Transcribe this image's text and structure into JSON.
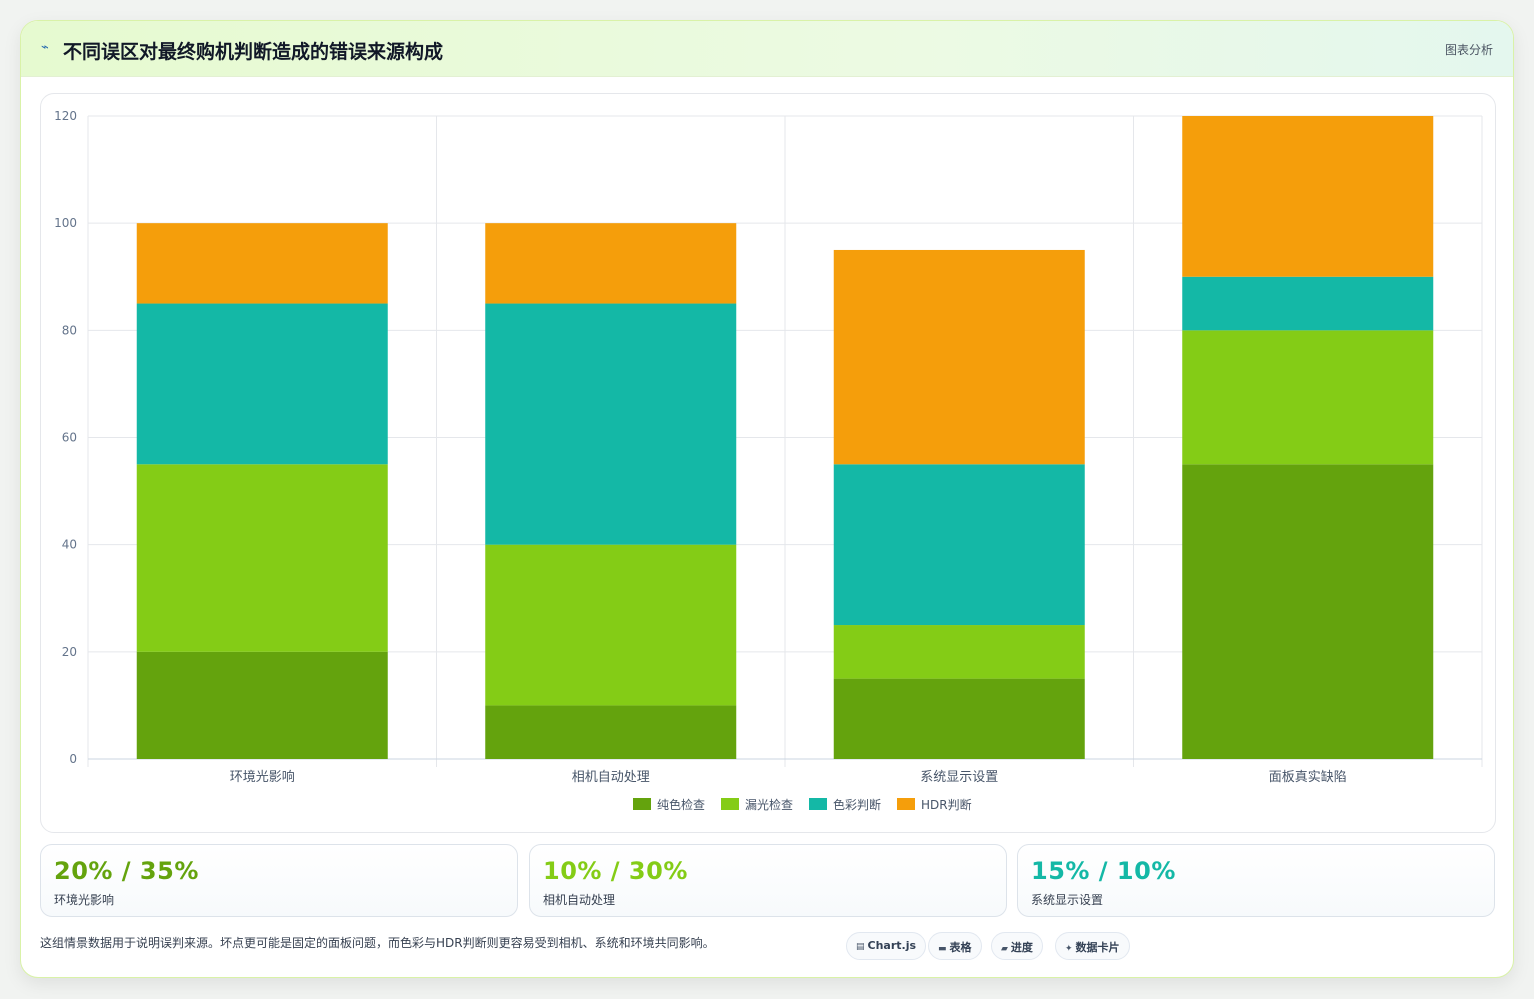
{
  "header": {
    "icon": "chart-line-icon",
    "title": "不同误区对最终购机判断造成的错误来源构成",
    "action_label": "图表分析"
  },
  "chart_data": {
    "type": "bar",
    "stacked": true,
    "categories": [
      "环境光影响",
      "相机自动处理",
      "系统显示设置",
      "面板真实缺陷"
    ],
    "series": [
      {
        "name": "纯色检查",
        "color": "#64a30d",
        "values": [
          20,
          10,
          15,
          55
        ]
      },
      {
        "name": "漏光检查",
        "color": "#84cc16",
        "values": [
          35,
          30,
          10,
          25
        ]
      },
      {
        "name": "色彩判断",
        "color": "#14b8a6",
        "values": [
          30,
          45,
          30,
          10
        ]
      },
      {
        "name": "HDR判断",
        "color": "#f59e0b",
        "values": [
          15,
          15,
          40,
          30
        ]
      }
    ],
    "ylim": [
      0,
      120
    ],
    "yticks": [
      "0",
      "20",
      "40",
      "60",
      "80",
      "100",
      "120"
    ],
    "grid": true,
    "legend": "bottom"
  },
  "stats": [
    {
      "value": "20% / 35%",
      "label": "环境光影响",
      "color": "#64a30d"
    },
    {
      "value": "10% / 30%",
      "label": "相机自动处理",
      "color": "#84cc16"
    },
    {
      "value": "15% / 10%",
      "label": "系统显示设置",
      "color": "#14b8a6"
    }
  ],
  "footnote": "这组情景数据用于说明误判来源。坏点更可能是固定的面板问题，而色彩与HDR判断则更容易受到相机、系统和环境共同影响。",
  "chips": [
    {
      "icon": "chart-icon",
      "label": "Chart.js"
    },
    {
      "icon": "table-icon",
      "label": "表格"
    },
    {
      "icon": "progress-icon",
      "label": "进度"
    },
    {
      "icon": "sparkle-icon",
      "label": "数据卡片"
    }
  ]
}
